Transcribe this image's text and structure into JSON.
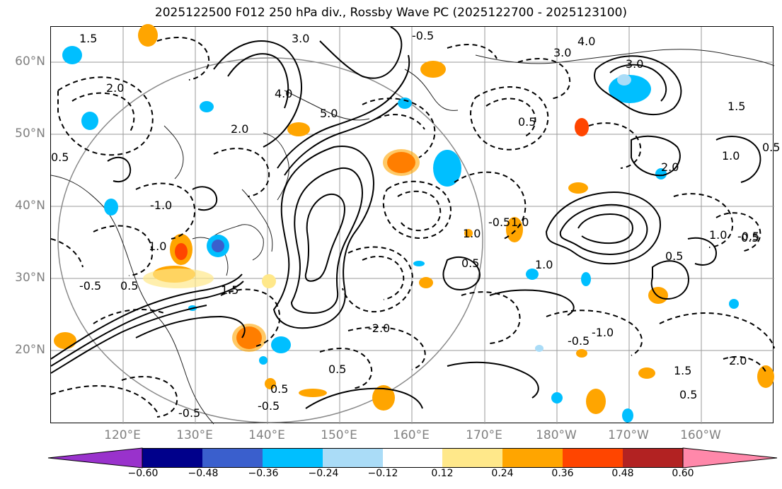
{
  "title": "2025122500 F012 250 hPa div., Rossby Wave PC (2025122700 - 2025123100)",
  "map": {
    "projection": "PlateCarree",
    "region": "Western / Central North Pacific",
    "gridlines": true,
    "fill_field": "250 hPa divergence (shaded)",
    "contour_field": "Rossby wave phase composite (solid positive, dashed negative)"
  },
  "lat_labels": [
    "60°N",
    "50°N",
    "40°N",
    "30°N",
    "20°N"
  ],
  "lon_labels": [
    "120°E",
    "130°E",
    "140°E",
    "150°E",
    "160°E",
    "170°E",
    "180°W",
    "170°W",
    "160°W"
  ],
  "colorbar": {
    "levels": [
      "−0.60",
      "−0.48",
      "−0.36",
      "−0.24",
      "−0.12",
      "0.12",
      "0.24",
      "0.36",
      "0.48",
      "0.60"
    ],
    "colors": [
      "#9932cc",
      "#00008b",
      "#3a5fcd",
      "#00bfff",
      "#aadcf7",
      "#ffffff",
      "#ffe88a",
      "#ffa500",
      "#ff4500",
      "#b22222",
      "#ff88aa"
    ],
    "extend": "both"
  },
  "contour_labels": [
    {
      "text": "1.5"
    },
    {
      "text": "2.0"
    },
    {
      "text": "0.5"
    },
    {
      "text": "3.0"
    },
    {
      "text": "4.0"
    },
    {
      "text": "2.0"
    },
    {
      "text": "5.0"
    },
    {
      "text": "-0.5"
    },
    {
      "text": "3.0"
    },
    {
      "text": "4.0"
    },
    {
      "text": "0.5"
    },
    {
      "text": "1.5"
    },
    {
      "text": "3.0"
    },
    {
      "text": "1.0"
    },
    {
      "text": "0.5"
    },
    {
      "text": "2.0"
    },
    {
      "text": "1.0"
    },
    {
      "text": "0.5"
    },
    {
      "text": "1.0"
    },
    {
      "text": "-1.0"
    },
    {
      "text": "-0.5"
    },
    {
      "text": "0.5"
    },
    {
      "text": "1.0"
    },
    {
      "text": "1.0"
    },
    {
      "text": "1.5"
    },
    {
      "text": "0.5"
    },
    {
      "text": "0.5"
    },
    {
      "text": "-0.5"
    },
    {
      "text": "-2.0"
    },
    {
      "text": "1.0"
    },
    {
      "text": "-0.5"
    },
    {
      "text": "-0.5"
    },
    {
      "text": "0.5"
    },
    {
      "text": "-0.5"
    },
    {
      "text": "0.5"
    },
    {
      "text": "-0.5"
    },
    {
      "text": "2.0"
    },
    {
      "text": "1.5"
    },
    {
      "text": "-1.0"
    },
    {
      "text": "0.5"
    }
  ]
}
